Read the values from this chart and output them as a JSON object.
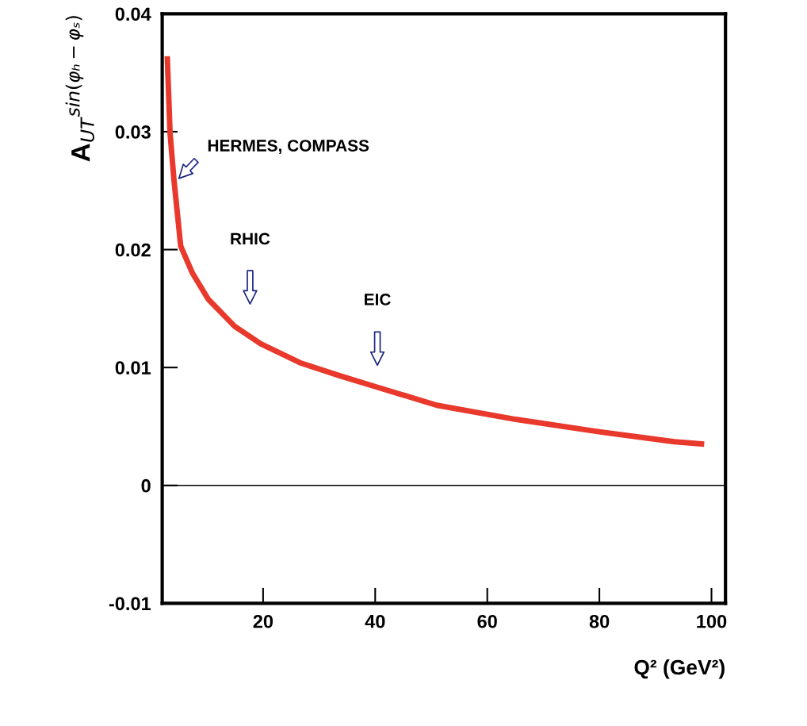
{
  "chart_data": {
    "type": "line",
    "xlabel": "Q² (GeV²)",
    "ylabel": "A$_{UT}$$^{sin(φₕ−φₛ)}$",
    "x": [
      2.9,
      3.4,
      4.1,
      5.3,
      7.4,
      10.2,
      14.9,
      19.6,
      26.6,
      33.7,
      39.9,
      51.0,
      65.1,
      79.2,
      93.4,
      98.7
    ],
    "series": [
      {
        "color": "#e8392c",
        "values": [
          0.0364,
          0.0299,
          0.0259,
          0.0203,
          0.018,
          0.0158,
          0.0135,
          0.012,
          0.0104,
          0.0093,
          0.0084,
          0.0068,
          0.0056,
          0.0046,
          0.0037,
          0.0035
        ]
      }
    ],
    "xlim": [
      2,
      102.5
    ],
    "ylim": [
      -0.01,
      0.04
    ],
    "xticks": [
      20,
      40,
      60,
      80,
      100
    ],
    "yticks": [
      -0.01,
      0,
      0.01,
      0.02,
      0.03,
      0.04
    ],
    "ref_lines": [
      {
        "axis": "y",
        "value": 0,
        "color": "#000000"
      }
    ],
    "annotations": [
      "HERMES, COMPASS",
      "RHIC",
      "EIC"
    ],
    "grid": false,
    "legend": false,
    "marker": "none",
    "line_style": "solid"
  }
}
